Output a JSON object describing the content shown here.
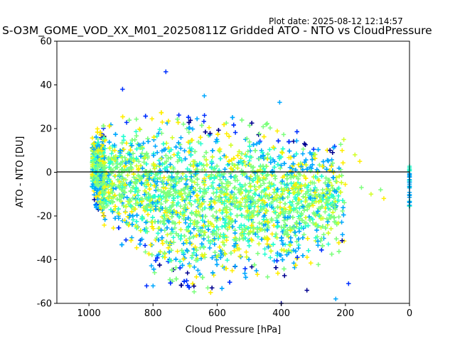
{
  "plot_date": "Plot date: 2025-08-12 12:14:57",
  "chart_data": {
    "type": "scatter",
    "title": "S-O3M_GOME_VOD_XX_M01_20250811Z Gridded ATO - NTO vs CloudPressure",
    "xlabel": "Cloud Pressure [hPa]",
    "ylabel": "ATO - NTO [DU]",
    "xlim": [
      1100,
      0
    ],
    "ylim": [
      -60,
      60
    ],
    "x_ticks": [
      1000,
      800,
      600,
      400,
      200,
      0
    ],
    "y_ticks": [
      60,
      40,
      20,
      0,
      -20,
      -40,
      -60
    ],
    "reference_line": {
      "y": 0,
      "color": "#000000"
    },
    "marker": "+",
    "grid": false,
    "legend": "none",
    "colors": [
      "#00008f",
      "#0030ff",
      "#00a8ff",
      "#26ffd1",
      "#7dff7d",
      "#d1ff26",
      "#ffee00"
    ],
    "envelope": {
      "x": [
        990,
        950,
        900,
        850,
        800,
        750,
        700,
        650,
        600,
        550,
        500,
        450,
        400,
        350,
        300,
        250,
        220,
        200,
        190
      ],
      "y_upper": [
        20,
        23,
        27,
        29,
        30,
        31,
        30,
        29,
        28,
        26,
        25,
        24,
        22,
        20,
        19,
        16,
        15,
        14,
        0
      ],
      "y_lower": [
        -12,
        -25,
        -32,
        -36,
        -45,
        -50,
        -53,
        -55,
        -55,
        -52,
        -50,
        -48,
        -47,
        -46,
        -43,
        -40,
        -36,
        -34,
        -30
      ]
    },
    "outliers": [
      {
        "x": 760,
        "y": 46
      },
      {
        "x": 640,
        "y": 35
      },
      {
        "x": 895,
        "y": 38
      },
      {
        "x": 405,
        "y": 32
      },
      {
        "x": 170,
        "y": 8
      },
      {
        "x": 155,
        "y": 5
      },
      {
        "x": 150,
        "y": -7
      },
      {
        "x": 120,
        "y": -10
      },
      {
        "x": 80,
        "y": -12
      },
      {
        "x": 90,
        "y": -8
      },
      {
        "x": 190,
        "y": -51
      },
      {
        "x": 230,
        "y": -58
      },
      {
        "x": 400,
        "y": -60
      },
      {
        "x": 820,
        "y": -52
      },
      {
        "x": 800,
        "y": -52
      },
      {
        "x": 320,
        "y": -54
      },
      {
        "x": 205,
        "y": 15
      },
      {
        "x": 210,
        "y": 10
      }
    ],
    "right_edge_cluster": {
      "x": 0,
      "y_range": [
        -16,
        3
      ]
    }
  }
}
